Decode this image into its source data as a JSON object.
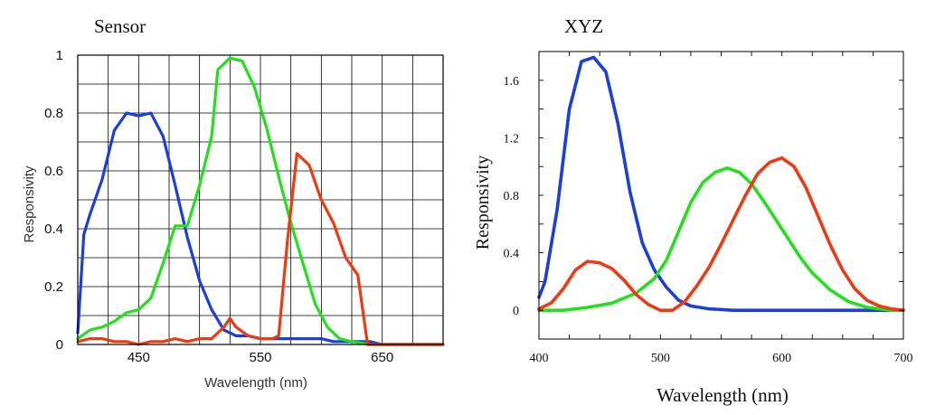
{
  "chart_data": [
    {
      "type": "line",
      "title": "Sensor",
      "xlabel": "Wavelength (nm)",
      "ylabel": "Responsivity",
      "xlim": [
        400,
        700
      ],
      "ylim": [
        0,
        1
      ],
      "x_ticks": [
        450,
        550,
        650
      ],
      "x_tick_labels": [
        "450",
        "550",
        "650"
      ],
      "y_ticks": [
        0,
        0.2,
        0.4,
        0.6,
        0.8,
        1
      ],
      "y_tick_labels": [
        "0",
        "0.2",
        "0.4",
        "0.6",
        "0.8",
        "1"
      ],
      "grid": true,
      "series": [
        {
          "color": "#1a3fdc",
          "points": [
            [
              400,
              0.04
            ],
            [
              405,
              0.38
            ],
            [
              410,
              0.45
            ],
            [
              420,
              0.57
            ],
            [
              430,
              0.74
            ],
            [
              440,
              0.8
            ],
            [
              450,
              0.79
            ],
            [
              460,
              0.8
            ],
            [
              470,
              0.72
            ],
            [
              480,
              0.55
            ],
            [
              490,
              0.37
            ],
            [
              500,
              0.22
            ],
            [
              510,
              0.12
            ],
            [
              520,
              0.05
            ],
            [
              530,
              0.03
            ],
            [
              540,
              0.03
            ],
            [
              550,
              0.02
            ],
            [
              560,
              0.02
            ],
            [
              570,
              0.02
            ],
            [
              580,
              0.02
            ],
            [
              590,
              0.02
            ],
            [
              600,
              0.02
            ],
            [
              610,
              0.01
            ],
            [
              620,
              0.01
            ],
            [
              630,
              0.01
            ],
            [
              640,
              0.01
            ],
            [
              650,
              0.0
            ],
            [
              660,
              0.0
            ],
            [
              700,
              0.0
            ]
          ]
        },
        {
          "color": "#22e01a",
          "points": [
            [
              400,
              0.02
            ],
            [
              410,
              0.05
            ],
            [
              420,
              0.06
            ],
            [
              430,
              0.08
            ],
            [
              440,
              0.11
            ],
            [
              450,
              0.12
            ],
            [
              460,
              0.16
            ],
            [
              470,
              0.28
            ],
            [
              480,
              0.41
            ],
            [
              490,
              0.41
            ],
            [
              500,
              0.55
            ],
            [
              510,
              0.72
            ],
            [
              515,
              0.95
            ],
            [
              525,
              0.99
            ],
            [
              535,
              0.98
            ],
            [
              545,
              0.89
            ],
            [
              555,
              0.75
            ],
            [
              565,
              0.58
            ],
            [
              575,
              0.42
            ],
            [
              585,
              0.28
            ],
            [
              595,
              0.14
            ],
            [
              605,
              0.06
            ],
            [
              615,
              0.02
            ],
            [
              625,
              0.01
            ],
            [
              640,
              0.0
            ],
            [
              700,
              0.0
            ]
          ]
        },
        {
          "color": "#ee3a12",
          "points": [
            [
              400,
              0.01
            ],
            [
              410,
              0.02
            ],
            [
              420,
              0.02
            ],
            [
              430,
              0.01
            ],
            [
              440,
              0.01
            ],
            [
              450,
              0.0
            ],
            [
              460,
              0.01
            ],
            [
              470,
              0.01
            ],
            [
              480,
              0.02
            ],
            [
              490,
              0.01
            ],
            [
              500,
              0.02
            ],
            [
              510,
              0.02
            ],
            [
              520,
              0.06
            ],
            [
              525,
              0.09
            ],
            [
              530,
              0.06
            ],
            [
              540,
              0.03
            ],
            [
              550,
              0.02
            ],
            [
              560,
              0.02
            ],
            [
              565,
              0.03
            ],
            [
              572,
              0.35
            ],
            [
              580,
              0.66
            ],
            [
              590,
              0.62
            ],
            [
              600,
              0.5
            ],
            [
              610,
              0.42
            ],
            [
              620,
              0.3
            ],
            [
              630,
              0.24
            ],
            [
              638,
              0.0
            ],
            [
              700,
              0.0
            ]
          ]
        }
      ]
    },
    {
      "type": "line",
      "title": "XYZ",
      "xlabel": "Wavelength (nm)",
      "ylabel": "Responsivity",
      "xlim": [
        400,
        700
      ],
      "ylim": [
        -0.2,
        1.8
      ],
      "x_ticks": [
        400,
        500,
        600,
        700
      ],
      "x_tick_labels": [
        "400",
        "500",
        "600",
        "700"
      ],
      "y_ticks": [
        0,
        0.4,
        0.8,
        1.2,
        1.6
      ],
      "y_tick_labels": [
        "0",
        "0.4",
        "0.8",
        "1.2",
        "1.6"
      ],
      "grid": false,
      "series": [
        {
          "color": "#1a3fdc",
          "points": [
            [
              400,
              0.09
            ],
            [
              405,
              0.2
            ],
            [
              415,
              0.7
            ],
            [
              425,
              1.4
            ],
            [
              435,
              1.73
            ],
            [
              445,
              1.76
            ],
            [
              455,
              1.66
            ],
            [
              465,
              1.3
            ],
            [
              475,
              0.82
            ],
            [
              485,
              0.47
            ],
            [
              495,
              0.28
            ],
            [
              505,
              0.16
            ],
            [
              515,
              0.07
            ],
            [
              525,
              0.03
            ],
            [
              540,
              0.01
            ],
            [
              560,
              0.0
            ],
            [
              700,
              0.0
            ]
          ]
        },
        {
          "color": "#22e01a",
          "points": [
            [
              400,
              0.0
            ],
            [
              420,
              0.0
            ],
            [
              440,
              0.02
            ],
            [
              460,
              0.05
            ],
            [
              480,
              0.12
            ],
            [
              495,
              0.22
            ],
            [
              505,
              0.35
            ],
            [
              515,
              0.55
            ],
            [
              525,
              0.75
            ],
            [
              535,
              0.89
            ],
            [
              545,
              0.96
            ],
            [
              555,
              0.99
            ],
            [
              565,
              0.96
            ],
            [
              575,
              0.88
            ],
            [
              585,
              0.76
            ],
            [
              595,
              0.63
            ],
            [
              605,
              0.5
            ],
            [
              615,
              0.37
            ],
            [
              625,
              0.26
            ],
            [
              640,
              0.14
            ],
            [
              655,
              0.06
            ],
            [
              670,
              0.02
            ],
            [
              690,
              0.0
            ],
            [
              700,
              0.0
            ]
          ]
        },
        {
          "color": "#ee3a12",
          "points": [
            [
              400,
              0.01
            ],
            [
              410,
              0.05
            ],
            [
              420,
              0.15
            ],
            [
              430,
              0.28
            ],
            [
              440,
              0.34
            ],
            [
              450,
              0.33
            ],
            [
              460,
              0.29
            ],
            [
              470,
              0.21
            ],
            [
              480,
              0.11
            ],
            [
              490,
              0.04
            ],
            [
              500,
              0.0
            ],
            [
              510,
              0.0
            ],
            [
              520,
              0.06
            ],
            [
              530,
              0.17
            ],
            [
              540,
              0.3
            ],
            [
              550,
              0.46
            ],
            [
              560,
              0.63
            ],
            [
              570,
              0.8
            ],
            [
              580,
              0.95
            ],
            [
              590,
              1.03
            ],
            [
              600,
              1.06
            ],
            [
              610,
              1.0
            ],
            [
              620,
              0.85
            ],
            [
              630,
              0.65
            ],
            [
              640,
              0.45
            ],
            [
              650,
              0.28
            ],
            [
              660,
              0.15
            ],
            [
              670,
              0.07
            ],
            [
              680,
              0.03
            ],
            [
              690,
              0.01
            ],
            [
              700,
              0.0
            ]
          ]
        }
      ]
    }
  ]
}
